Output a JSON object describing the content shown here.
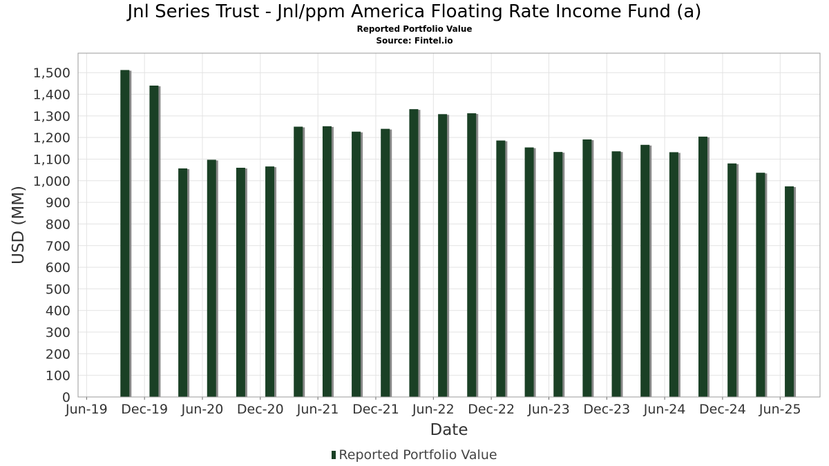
{
  "header": {
    "title": "Jnl Series Trust - Jnl/ppm America Floating Rate Income Fund (a)",
    "subtitle": "Reported Portfolio Value",
    "source": "Source: Fintel.io"
  },
  "legend": {
    "label": "Reported Portfolio Value"
  },
  "colors": {
    "bar": "#1a4025",
    "shadow": "#8a8a8a",
    "grid": "#e3e3e3",
    "frame": "#999999"
  },
  "chart_data": {
    "type": "bar",
    "title": "Jnl Series Trust - Jnl/ppm America Floating Rate Income Fund (a)",
    "subtitle": "Reported Portfolio Value",
    "xlabel": "Date",
    "ylabel": "USD (MM)",
    "ylim": [
      0,
      1590
    ],
    "xlim": [
      "2019-05-05",
      "2025-10-05"
    ],
    "grid": true,
    "legend_position": "bottom",
    "y_ticks": [
      0,
      100,
      200,
      300,
      400,
      500,
      600,
      700,
      800,
      900,
      1000,
      1100,
      1200,
      1300,
      1400,
      1500
    ],
    "x_ticks": [
      {
        "label": "Jun-19",
        "date": "2019-06-01"
      },
      {
        "label": "Dec-19",
        "date": "2019-12-01"
      },
      {
        "label": "Jun-20",
        "date": "2020-06-01"
      },
      {
        "label": "Dec-20",
        "date": "2020-12-01"
      },
      {
        "label": "Jun-21",
        "date": "2021-06-01"
      },
      {
        "label": "Dec-21",
        "date": "2021-12-01"
      },
      {
        "label": "Jun-22",
        "date": "2022-06-01"
      },
      {
        "label": "Dec-22",
        "date": "2022-12-01"
      },
      {
        "label": "Jun-23",
        "date": "2023-06-01"
      },
      {
        "label": "Dec-23",
        "date": "2023-12-01"
      },
      {
        "label": "Jun-24",
        "date": "2024-06-01"
      },
      {
        "label": "Dec-24",
        "date": "2024-12-01"
      },
      {
        "label": "Jun-25",
        "date": "2025-06-01"
      }
    ],
    "series": [
      {
        "name": "Reported Portfolio Value",
        "points": [
          {
            "date": "2019-09-30",
            "value": 1512
          },
          {
            "date": "2019-12-31",
            "value": 1440
          },
          {
            "date": "2020-03-31",
            "value": 1057
          },
          {
            "date": "2020-06-30",
            "value": 1097
          },
          {
            "date": "2020-09-30",
            "value": 1060
          },
          {
            "date": "2020-12-31",
            "value": 1066
          },
          {
            "date": "2021-03-31",
            "value": 1250
          },
          {
            "date": "2021-06-30",
            "value": 1252
          },
          {
            "date": "2021-09-30",
            "value": 1227
          },
          {
            "date": "2021-12-31",
            "value": 1240
          },
          {
            "date": "2022-03-31",
            "value": 1331
          },
          {
            "date": "2022-06-30",
            "value": 1308
          },
          {
            "date": "2022-09-30",
            "value": 1312
          },
          {
            "date": "2022-12-31",
            "value": 1186
          },
          {
            "date": "2023-03-31",
            "value": 1154
          },
          {
            "date": "2023-06-30",
            "value": 1133
          },
          {
            "date": "2023-09-30",
            "value": 1191
          },
          {
            "date": "2023-12-31",
            "value": 1136
          },
          {
            "date": "2024-03-31",
            "value": 1166
          },
          {
            "date": "2024-06-30",
            "value": 1132
          },
          {
            "date": "2024-09-30",
            "value": 1204
          },
          {
            "date": "2024-12-31",
            "value": 1080
          },
          {
            "date": "2025-03-31",
            "value": 1037
          },
          {
            "date": "2025-06-30",
            "value": 974
          }
        ]
      }
    ]
  }
}
